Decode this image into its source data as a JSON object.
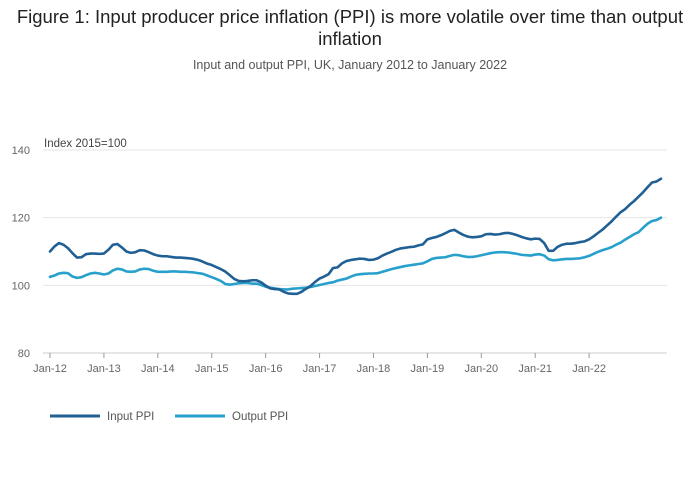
{
  "title": "Figure 1: Input producer price inflation (PPI) is more volatile over time than output inflation",
  "subtitle": "Input and output PPI, UK, January 2012 to January 2022",
  "chart_data": {
    "type": "line",
    "ylabel": "Index 2015=100",
    "ylim": [
      80,
      140
    ],
    "yticks": [
      80,
      100,
      120,
      140
    ],
    "x_tick_labels": [
      "Jan-12",
      "Jan-13",
      "Jan-14",
      "Jan-15",
      "Jan-16",
      "Jan-17",
      "Jan-18",
      "Jan-19",
      "Jan-20",
      "Jan-21",
      "Jan-22"
    ],
    "x_start": "2012-01",
    "grid": true,
    "legend_position": "bottom-left",
    "colors": {
      "Input PPI": "#206095",
      "Output PPI": "#27a0cc"
    },
    "series": [
      {
        "name": "Input PPI",
        "values": [
          110.0,
          111.5,
          112.5,
          112.0,
          111.0,
          109.5,
          108.2,
          108.3,
          109.2,
          109.4,
          109.4,
          109.3,
          109.4,
          110.5,
          112.0,
          112.2,
          111.2,
          110.0,
          109.6,
          109.8,
          110.4,
          110.3,
          109.8,
          109.2,
          108.8,
          108.6,
          108.6,
          108.4,
          108.2,
          108.2,
          108.1,
          108.0,
          107.8,
          107.5,
          107.0,
          106.4,
          106.0,
          105.4,
          104.8,
          104.1,
          103.0,
          101.9,
          101.3,
          101.2,
          101.3,
          101.5,
          101.5,
          100.9,
          99.9,
          99.1,
          98.9,
          98.8,
          98.1,
          97.6,
          97.5,
          97.5,
          98.1,
          99.0,
          99.8,
          101.0,
          102.0,
          102.6,
          103.3,
          105.1,
          105.3,
          106.5,
          107.2,
          107.5,
          107.7,
          107.9,
          107.8,
          107.5,
          107.6,
          108.0,
          108.8,
          109.4,
          109.9,
          110.5,
          110.9,
          111.1,
          111.3,
          111.4,
          111.8,
          112.1,
          113.6,
          114.0,
          114.3,
          114.8,
          115.4,
          116.1,
          116.4,
          115.6,
          114.9,
          114.4,
          114.2,
          114.3,
          114.5,
          115.1,
          115.2,
          115.0,
          115.1,
          115.4,
          115.5,
          115.2,
          114.8,
          114.3,
          113.9,
          113.6,
          113.8,
          113.7,
          112.5,
          110.2,
          110.2,
          111.4,
          112.0,
          112.3,
          112.3,
          112.5,
          112.8,
          113.0,
          113.6,
          114.5,
          115.5,
          116.5,
          117.7,
          118.9,
          120.3,
          121.6,
          122.5,
          123.8,
          124.9,
          126.2,
          127.5,
          129.0,
          130.4,
          130.7,
          131.5
        ]
      },
      {
        "name": "Output PPI",
        "values": [
          102.5,
          102.9,
          103.5,
          103.7,
          103.6,
          102.6,
          102.2,
          102.4,
          103.0,
          103.5,
          103.7,
          103.5,
          103.2,
          103.5,
          104.4,
          104.9,
          104.7,
          104.1,
          104.0,
          104.1,
          104.7,
          104.9,
          104.8,
          104.3,
          104.0,
          104.0,
          104.0,
          104.1,
          104.1,
          104.0,
          104.0,
          103.9,
          103.8,
          103.6,
          103.4,
          102.9,
          102.4,
          101.9,
          101.3,
          100.4,
          100.2,
          100.4,
          100.6,
          100.7,
          100.7,
          100.5,
          100.5,
          100.1,
          99.6,
          99.3,
          99.1,
          98.9,
          98.8,
          98.8,
          99.0,
          99.1,
          99.2,
          99.3,
          99.5,
          99.8,
          100.1,
          100.4,
          100.7,
          100.9,
          101.4,
          101.7,
          102.0,
          102.6,
          103.1,
          103.3,
          103.4,
          103.5,
          103.5,
          103.6,
          104.0,
          104.4,
          104.8,
          105.1,
          105.4,
          105.7,
          105.9,
          106.1,
          106.3,
          106.5,
          107.1,
          107.8,
          108.1,
          108.2,
          108.3,
          108.7,
          109.0,
          108.9,
          108.6,
          108.4,
          108.4,
          108.6,
          108.9,
          109.2,
          109.5,
          109.7,
          109.8,
          109.8,
          109.7,
          109.5,
          109.3,
          109.0,
          108.9,
          108.8,
          109.1,
          109.2,
          108.8,
          107.7,
          107.4,
          107.5,
          107.7,
          107.8,
          107.8,
          107.9,
          108.0,
          108.3,
          108.7,
          109.3,
          109.9,
          110.4,
          110.8,
          111.3,
          112.0,
          112.6,
          113.5,
          114.3,
          115.1,
          115.7,
          117.0,
          118.2,
          119.0,
          119.3,
          120.0
        ]
      }
    ]
  }
}
